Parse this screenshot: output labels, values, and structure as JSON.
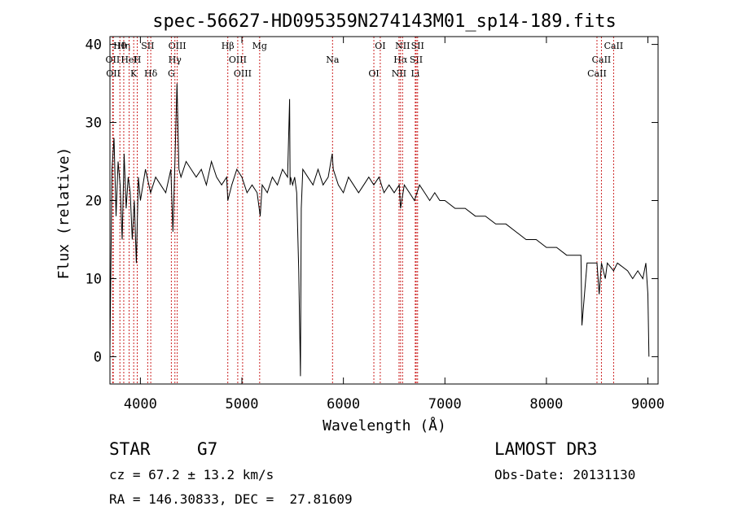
{
  "chart_data": {
    "type": "line",
    "title": "spec-56627-HD095359N274143M01_sp14-189.fits",
    "xlabel": "Wavelength (Å)",
    "ylabel": "Flux (relative)",
    "xlim": [
      3700,
      9100
    ],
    "ylim": [
      -3.5,
      41
    ],
    "xticks": [
      4000,
      5000,
      6000,
      7000,
      8000,
      9000
    ],
    "yticks": [
      0,
      10,
      20,
      30,
      40
    ],
    "grid": false,
    "series": [
      {
        "name": "flux",
        "color": "#000000",
        "x": [
          3700,
          3720,
          3740,
          3760,
          3780,
          3800,
          3820,
          3840,
          3860,
          3880,
          3900,
          3920,
          3940,
          3960,
          3980,
          4000,
          4050,
          4100,
          4150,
          4200,
          4250,
          4300,
          4320,
          4340,
          4360,
          4380,
          4400,
          4450,
          4500,
          4550,
          4600,
          4650,
          4700,
          4750,
          4800,
          4850,
          4861,
          4900,
          4950,
          5000,
          5050,
          5100,
          5150,
          5180,
          5200,
          5250,
          5300,
          5350,
          5400,
          5450,
          5470,
          5475,
          5480,
          5500,
          5520,
          5540,
          5560,
          5577,
          5585,
          5600,
          5650,
          5700,
          5750,
          5800,
          5850,
          5890,
          5900,
          5950,
          6000,
          6050,
          6100,
          6150,
          6200,
          6250,
          6300,
          6350,
          6400,
          6450,
          6500,
          6550,
          6563,
          6600,
          6650,
          6700,
          6750,
          6800,
          6850,
          6900,
          6950,
          7000,
          7100,
          7200,
          7300,
          7400,
          7500,
          7600,
          7700,
          7800,
          7900,
          8000,
          8100,
          8200,
          8300,
          8340,
          8350,
          8400,
          8450,
          8498,
          8520,
          8542,
          8580,
          8600,
          8662,
          8700,
          8800,
          8850,
          8900,
          8950,
          8980,
          9000,
          9010
        ],
        "y": [
          1,
          24,
          28,
          18,
          25,
          22,
          15,
          26,
          19,
          23,
          21,
          15,
          20,
          12,
          23,
          20,
          24,
          21,
          23,
          22,
          21,
          24,
          16,
          25,
          35,
          24,
          23,
          25,
          24,
          23,
          24,
          22,
          25,
          23,
          22,
          23,
          20,
          22,
          24,
          23,
          21,
          22,
          21,
          18,
          22,
          21,
          23,
          22,
          24,
          23,
          33,
          22,
          23,
          22,
          23,
          21,
          11,
          -2.5,
          19,
          24,
          23,
          22,
          24,
          22,
          23,
          26,
          24,
          22,
          21,
          23,
          22,
          21,
          22,
          23,
          22,
          23,
          21,
          22,
          21,
          22,
          19,
          22,
          21,
          20,
          22,
          21,
          20,
          21,
          20,
          20,
          19,
          19,
          18,
          18,
          17,
          17,
          16,
          15,
          15,
          14,
          14,
          13,
          13,
          13,
          4,
          12,
          12,
          12,
          8,
          12,
          10,
          12,
          11,
          12,
          11,
          10,
          11,
          10,
          12,
          8,
          0
        ]
      }
    ],
    "lines": [
      {
        "label": "Hθ",
        "wavelength": 3798
      },
      {
        "label": "OII",
        "wavelength": 3727
      },
      {
        "label": "OII",
        "wavelength": 3733
      },
      {
        "label": "Hη",
        "wavelength": 3836
      },
      {
        "label": "HeI",
        "wavelength": 3889
      },
      {
        "label": "K",
        "wavelength": 3934
      },
      {
        "label": "SII",
        "wavelength": 4072
      },
      {
        "label": "H",
        "wavelength": 3969
      },
      {
        "label": "Hδ",
        "wavelength": 4102
      },
      {
        "label": "OIII",
        "wavelength": 4363
      },
      {
        "label": "Hγ",
        "wavelength": 4340
      },
      {
        "label": "G",
        "wavelength": 4305
      },
      {
        "label": "Hβ",
        "wavelength": 4861
      },
      {
        "label": "OIII",
        "wavelength": 4959
      },
      {
        "label": "OIII",
        "wavelength": 5007
      },
      {
        "label": "Mg",
        "wavelength": 5175
      },
      {
        "label": "Na",
        "wavelength": 5893
      },
      {
        "label": "OI",
        "wavelength": 6300
      },
      {
        "label": "OI",
        "wavelength": 6363
      },
      {
        "label": "Hα",
        "wavelength": 6563
      },
      {
        "label": "NII",
        "wavelength": 6548
      },
      {
        "label": "NII",
        "wavelength": 6583
      },
      {
        "label": "SII",
        "wavelength": 6717
      },
      {
        "label": "Li",
        "wavelength": 6708
      },
      {
        "label": "SII",
        "wavelength": 6731
      },
      {
        "label": "CaII",
        "wavelength": 8542
      },
      {
        "label": "CaII",
        "wavelength": 8498
      },
      {
        "label": "CaII",
        "wavelength": 8662
      }
    ],
    "line_color": "#cc2222"
  },
  "info": {
    "class_label": "STAR",
    "subclass": "G7",
    "cz": "cz = 67.2 ± 13.2 km/s",
    "coords": "RA = 146.30833, DEC =  27.81609",
    "survey": "LAMOST DR3",
    "obs_date": "Obs-Date: 20131130"
  }
}
